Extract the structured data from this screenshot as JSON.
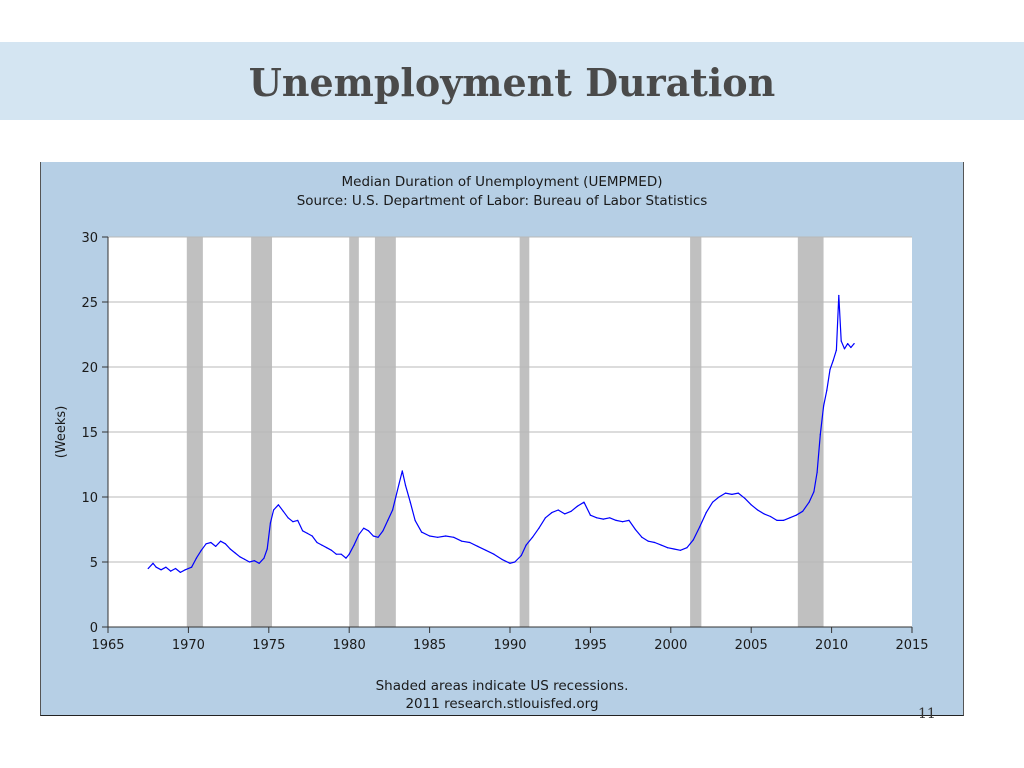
{
  "slide": {
    "title": "Unemployment Duration",
    "page_number": "11"
  },
  "chart_data": {
    "type": "line",
    "title": "Median Duration of Unemployment (UEMPMED)",
    "subtitle": "Source: U.S. Department of Labor: Bureau of Labor Statistics",
    "xlabel": "",
    "ylabel": "(Weeks)",
    "xlim": [
      1965,
      2015
    ],
    "ylim": [
      0,
      30
    ],
    "x_ticks": [
      1965,
      1970,
      1975,
      1980,
      1985,
      1990,
      1995,
      2000,
      2005,
      2010,
      2015
    ],
    "y_ticks": [
      0,
      5,
      10,
      15,
      20,
      25,
      30
    ],
    "grid": true,
    "series_color": "#0000ff",
    "recession_color": "#c0c0c0",
    "plot_background": "#ffffff",
    "frame_background": "#b6cfe5",
    "recessions": [
      [
        1969.9,
        1970.9
      ],
      [
        1973.9,
        1975.2
      ],
      [
        1980.0,
        1980.6
      ],
      [
        1981.6,
        1982.9
      ],
      [
        1990.6,
        1991.2
      ],
      [
        2001.2,
        2001.9
      ],
      [
        2007.9,
        2009.5
      ]
    ],
    "series": [
      {
        "values": [
          [
            1967.5,
            4.5
          ],
          [
            1967.8,
            4.9
          ],
          [
            1968.0,
            4.6
          ],
          [
            1968.3,
            4.4
          ],
          [
            1968.6,
            4.6
          ],
          [
            1968.9,
            4.3
          ],
          [
            1969.2,
            4.5
          ],
          [
            1969.5,
            4.2
          ],
          [
            1969.8,
            4.4
          ],
          [
            1970.2,
            4.6
          ],
          [
            1970.5,
            5.3
          ],
          [
            1970.8,
            5.9
          ],
          [
            1971.1,
            6.4
          ],
          [
            1971.4,
            6.5
          ],
          [
            1971.7,
            6.2
          ],
          [
            1972.0,
            6.6
          ],
          [
            1972.3,
            6.4
          ],
          [
            1972.6,
            6.0
          ],
          [
            1972.9,
            5.7
          ],
          [
            1973.2,
            5.4
          ],
          [
            1973.5,
            5.2
          ],
          [
            1973.8,
            5.0
          ],
          [
            1974.1,
            5.1
          ],
          [
            1974.4,
            4.9
          ],
          [
            1974.7,
            5.3
          ],
          [
            1974.9,
            6.0
          ],
          [
            1975.1,
            8.0
          ],
          [
            1975.3,
            9.0
          ],
          [
            1975.6,
            9.4
          ],
          [
            1975.9,
            8.9
          ],
          [
            1976.2,
            8.4
          ],
          [
            1976.5,
            8.1
          ],
          [
            1976.8,
            8.2
          ],
          [
            1977.1,
            7.4
          ],
          [
            1977.4,
            7.2
          ],
          [
            1977.7,
            7.0
          ],
          [
            1978.0,
            6.5
          ],
          [
            1978.3,
            6.3
          ],
          [
            1978.6,
            6.1
          ],
          [
            1978.9,
            5.9
          ],
          [
            1979.2,
            5.6
          ],
          [
            1979.5,
            5.6
          ],
          [
            1979.8,
            5.3
          ],
          [
            1980.0,
            5.6
          ],
          [
            1980.3,
            6.3
          ],
          [
            1980.6,
            7.1
          ],
          [
            1980.9,
            7.6
          ],
          [
            1981.2,
            7.4
          ],
          [
            1981.5,
            7.0
          ],
          [
            1981.8,
            6.9
          ],
          [
            1982.1,
            7.4
          ],
          [
            1982.4,
            8.2
          ],
          [
            1982.7,
            9.0
          ],
          [
            1982.9,
            10.0
          ],
          [
            1983.1,
            11.0
          ],
          [
            1983.3,
            12.0
          ],
          [
            1983.5,
            10.9
          ],
          [
            1983.8,
            9.6
          ],
          [
            1984.1,
            8.2
          ],
          [
            1984.5,
            7.3
          ],
          [
            1985.0,
            7.0
          ],
          [
            1985.5,
            6.9
          ],
          [
            1986.0,
            7.0
          ],
          [
            1986.5,
            6.9
          ],
          [
            1987.0,
            6.6
          ],
          [
            1987.5,
            6.5
          ],
          [
            1988.0,
            6.2
          ],
          [
            1988.5,
            5.9
          ],
          [
            1989.0,
            5.6
          ],
          [
            1989.5,
            5.2
          ],
          [
            1990.0,
            4.9
          ],
          [
            1990.3,
            5.0
          ],
          [
            1990.7,
            5.5
          ],
          [
            1991.0,
            6.3
          ],
          [
            1991.4,
            6.9
          ],
          [
            1991.8,
            7.6
          ],
          [
            1992.2,
            8.4
          ],
          [
            1992.6,
            8.8
          ],
          [
            1993.0,
            9.0
          ],
          [
            1993.4,
            8.7
          ],
          [
            1993.8,
            8.9
          ],
          [
            1994.2,
            9.3
          ],
          [
            1994.6,
            9.6
          ],
          [
            1995.0,
            8.6
          ],
          [
            1995.4,
            8.4
          ],
          [
            1995.8,
            8.3
          ],
          [
            1996.2,
            8.4
          ],
          [
            1996.6,
            8.2
          ],
          [
            1997.0,
            8.1
          ],
          [
            1997.4,
            8.2
          ],
          [
            1997.8,
            7.5
          ],
          [
            1998.2,
            6.9
          ],
          [
            1998.6,
            6.6
          ],
          [
            1999.0,
            6.5
          ],
          [
            1999.4,
            6.3
          ],
          [
            1999.8,
            6.1
          ],
          [
            2000.2,
            6.0
          ],
          [
            2000.6,
            5.9
          ],
          [
            2001.0,
            6.1
          ],
          [
            2001.4,
            6.7
          ],
          [
            2001.8,
            7.7
          ],
          [
            2002.2,
            8.8
          ],
          [
            2002.6,
            9.6
          ],
          [
            2003.0,
            10.0
          ],
          [
            2003.4,
            10.3
          ],
          [
            2003.8,
            10.2
          ],
          [
            2004.2,
            10.3
          ],
          [
            2004.6,
            9.9
          ],
          [
            2005.0,
            9.4
          ],
          [
            2005.4,
            9.0
          ],
          [
            2005.8,
            8.7
          ],
          [
            2006.2,
            8.5
          ],
          [
            2006.6,
            8.2
          ],
          [
            2007.0,
            8.2
          ],
          [
            2007.4,
            8.4
          ],
          [
            2007.8,
            8.6
          ],
          [
            2008.2,
            8.9
          ],
          [
            2008.6,
            9.6
          ],
          [
            2008.9,
            10.4
          ],
          [
            2009.1,
            11.9
          ],
          [
            2009.3,
            14.8
          ],
          [
            2009.5,
            17.0
          ],
          [
            2009.7,
            18.2
          ],
          [
            2009.9,
            19.8
          ],
          [
            2010.1,
            20.5
          ],
          [
            2010.3,
            21.3
          ],
          [
            2010.45,
            25.5
          ],
          [
            2010.6,
            22.0
          ],
          [
            2010.8,
            21.4
          ],
          [
            2011.0,
            21.8
          ],
          [
            2011.2,
            21.5
          ],
          [
            2011.4,
            21.8
          ]
        ]
      }
    ],
    "footer_lines": [
      "Shaded areas indicate US recessions.",
      "2011 research.stlouisfed.org"
    ]
  }
}
